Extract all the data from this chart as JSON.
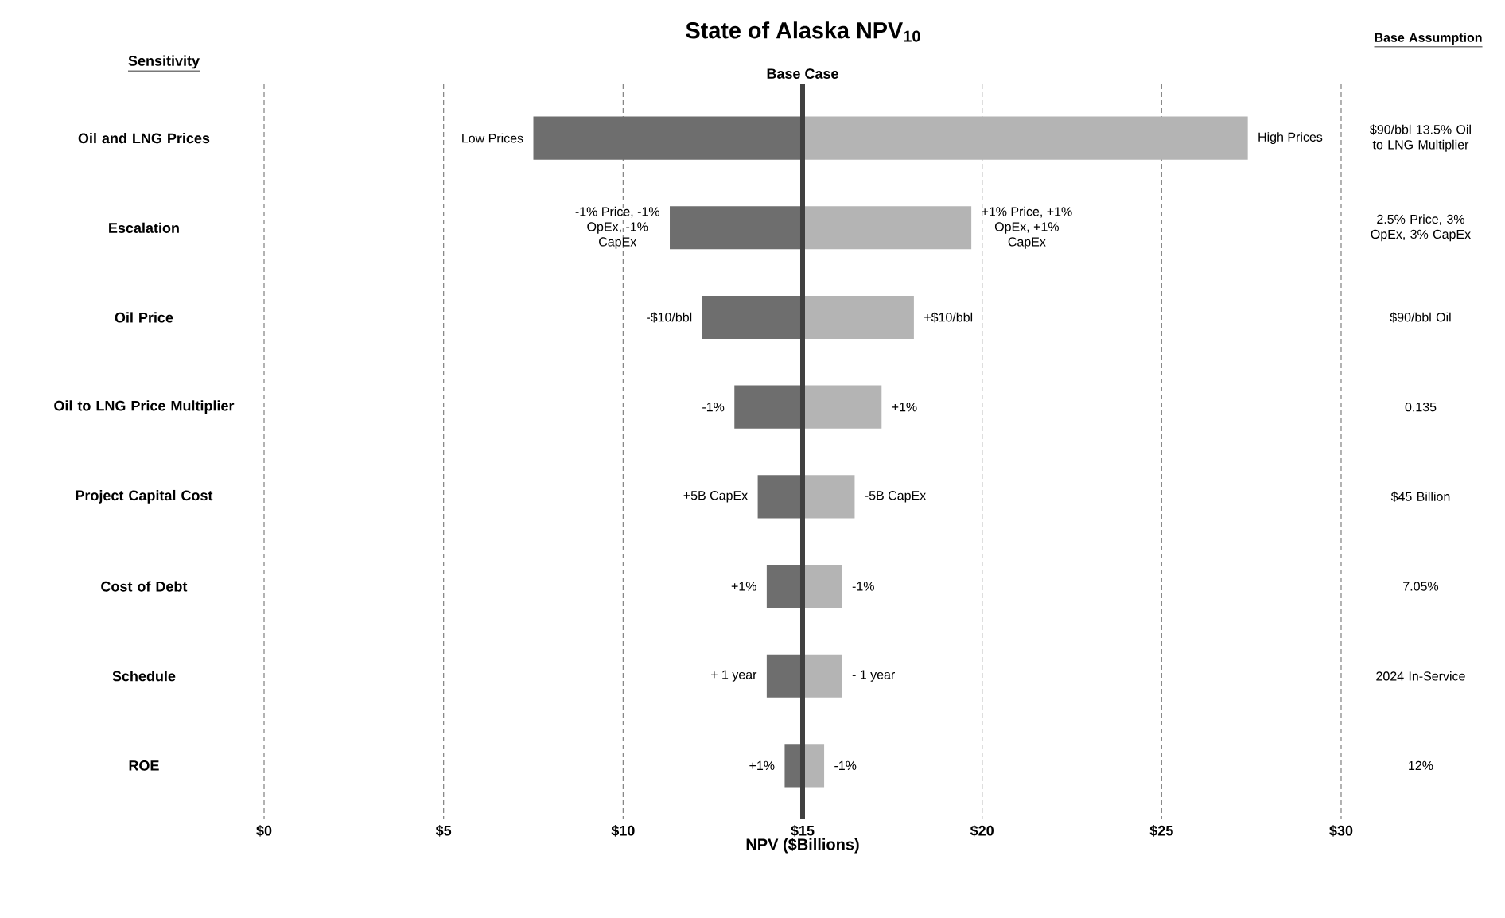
{
  "chart_data": {
    "type": "bar",
    "orientation": "horizontal",
    "title": "State of Alaska NPV$_{10}$",
    "xlabel": "NPV ($Billions)",
    "ylabel": "Sensitivity",
    "categories": [
      "Oil and LNG Prices",
      "Escalation",
      "Oil Price",
      "Oil to LNG Price Multiplier",
      "Project Capital Cost",
      "Cost of Debt",
      "Schedule",
      "ROE"
    ],
    "series": [
      {
        "color": "#6e6e6e",
        "base": [
          15,
          15,
          15,
          15,
          15,
          15,
          15,
          15
        ],
        "values": [
          -7.5,
          -3.7,
          -2.8,
          -1.9,
          -1.25,
          -1.0,
          -1.0,
          -0.5
        ]
      },
      {
        "color": "#b4b4b4",
        "base": [
          15,
          15,
          15,
          15,
          15,
          15,
          15,
          15
        ],
        "values": [
          12.4,
          4.7,
          3.1,
          2.2,
          1.45,
          1.1,
          1.1,
          0.6
        ]
      }
    ],
    "xlim": [
      0,
      30
    ],
    "xticks": [
      {
        "value": 0,
        "label": "$0"
      },
      {
        "value": 5,
        "label": "$5"
      },
      {
        "value": 10,
        "label": "$10"
      },
      {
        "value": 15,
        "label": "$15"
      },
      {
        "value": 20,
        "label": "$20"
      },
      {
        "value": 25,
        "label": "$25"
      },
      {
        "value": 30,
        "label": "$30"
      }
    ],
    "grid": "x",
    "ref_lines": [
      {
        "axis": "x",
        "value": 15,
        "label": "Base Case",
        "color": "#404040"
      }
    ],
    "annotations": [
      "Base Assumption",
      "$90/bbl 13.5% Oil to LNG Multiplier",
      "2.5% Price, 3% OpEx, 3% CapEx",
      "$90/bbl Oil",
      "0.135",
      "$45 Billion",
      "7.05%",
      "2024 In-Service",
      "12%",
      {
        "text": "Low Prices",
        "x": 7.5,
        "y": "Oil and LNG Prices"
      },
      {
        "text": "High Prices",
        "x": 27.4,
        "y": "Oil and LNG Prices"
      },
      {
        "text": "-1% Price, -1% OpEx, -1% CapEx",
        "x": 11.3,
        "y": "Escalation"
      },
      {
        "text": "+1% Price, +1% OpEx, +1% CapEx",
        "x": 19.7,
        "y": "Escalation"
      },
      {
        "text": "-$10/bbl",
        "x": 12.2,
        "y": "Oil Price"
      },
      {
        "text": "+$10/bbl",
        "x": 18.1,
        "y": "Oil Price"
      },
      {
        "text": "-1%",
        "x": 13.1,
        "y": "Oil to LNG Price Multiplier"
      },
      {
        "text": "+1%",
        "x": 17.2,
        "y": "Oil to LNG Price Multiplier"
      },
      {
        "text": "+5B CapEx",
        "x": 13.75,
        "y": "Project Capital Cost"
      },
      {
        "text": "-5B CapEx",
        "x": 16.45,
        "y": "Project Capital Cost"
      },
      {
        "text": "+1%",
        "x": 14.0,
        "y": "Cost of Debt"
      },
      {
        "text": "-1%",
        "x": 16.1,
        "y": "Cost of Debt"
      },
      {
        "text": "+ 1 year",
        "x": 14.0,
        "y": "Schedule"
      },
      {
        "text": "- 1 year",
        "x": 16.1,
        "y": "Schedule"
      },
      {
        "text": "+1%",
        "x": 14.5,
        "y": "ROE"
      },
      {
        "text": "-1%",
        "x": 15.6,
        "y": "ROE"
      }
    ]
  }
}
